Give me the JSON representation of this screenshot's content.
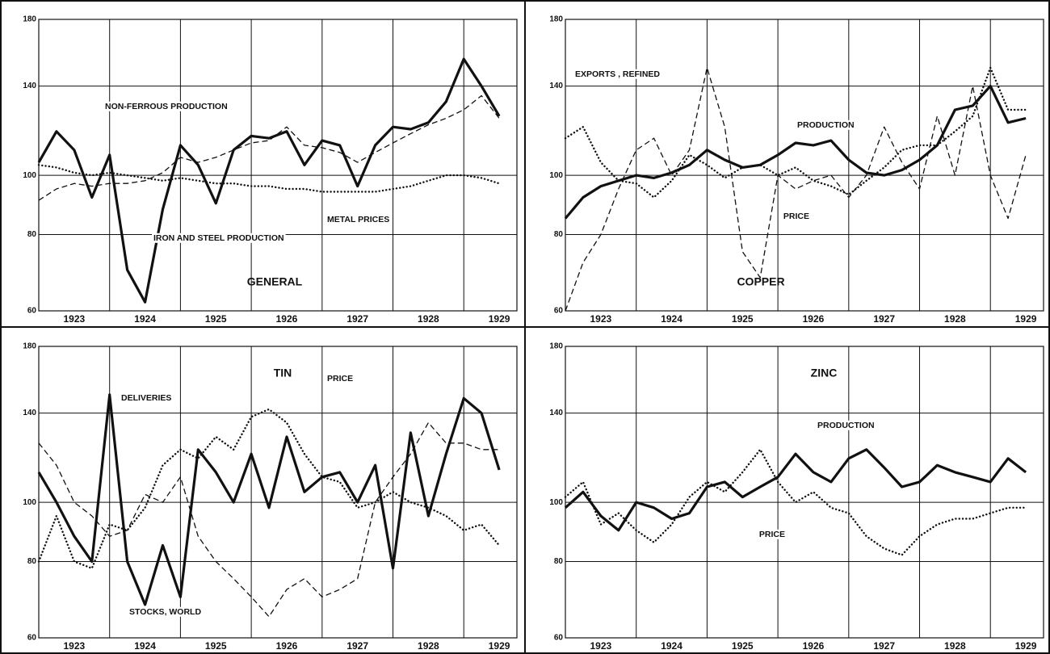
{
  "chart_data": [
    {
      "type": "line",
      "title": "GENERAL",
      "log": true,
      "xlim": [
        1923,
        1929.75
      ],
      "xticks": [
        1923,
        1924,
        1925,
        1926,
        1927,
        1928,
        1929
      ],
      "ylim": [
        60,
        180
      ],
      "yticks": [
        60,
        80,
        100,
        140,
        180
      ],
      "x": [
        1923.0,
        1923.25,
        1923.5,
        1923.75,
        1924.0,
        1924.25,
        1924.5,
        1924.75,
        1925.0,
        1925.25,
        1925.5,
        1925.75,
        1926.0,
        1926.25,
        1926.5,
        1926.75,
        1927.0,
        1927.25,
        1927.5,
        1927.75,
        1928.0,
        1928.25,
        1928.5,
        1928.75,
        1929.0,
        1929.25,
        1929.5
      ],
      "series": [
        {
          "name": "IRON AND STEEL PRODUCTION",
          "color": "#111111",
          "style": "thick",
          "values": [
            105,
            118,
            110,
            92,
            108,
            70,
            62,
            88,
            112,
            104,
            90,
            110,
            116,
            115,
            118,
            104,
            114,
            112,
            96,
            112,
            120,
            119,
            122,
            132,
            155,
            140,
            125
          ]
        },
        {
          "name": "NON-FERROUS PRODUCTION",
          "color": "#111111",
          "style": "dashed",
          "values": [
            91,
            95,
            97,
            96,
            97,
            97,
            98,
            101,
            107,
            105,
            107,
            110,
            113,
            114,
            120,
            112,
            111,
            109,
            105,
            109,
            113,
            117,
            121,
            124,
            128,
            135,
            124
          ]
        },
        {
          "name": "METAL PRICES",
          "color": "#111111",
          "style": "dotted",
          "values": [
            104,
            103,
            101,
            100,
            101,
            100,
            99,
            98,
            99,
            98,
            97,
            97,
            96,
            96,
            95,
            95,
            94,
            94,
            94,
            94,
            95,
            96,
            98,
            100,
            100,
            99,
            97
          ]
        }
      ]
    },
    {
      "type": "line",
      "title": "COPPER",
      "log": true,
      "xlim": [
        1923,
        1929.75
      ],
      "xticks": [
        1923,
        1924,
        1925,
        1926,
        1927,
        1928,
        1929
      ],
      "ylim": [
        60,
        180
      ],
      "yticks": [
        60,
        80,
        100,
        140,
        180
      ],
      "x": [
        1923.0,
        1923.25,
        1923.5,
        1923.75,
        1924.0,
        1924.25,
        1924.5,
        1924.75,
        1925.0,
        1925.25,
        1925.5,
        1925.75,
        1926.0,
        1926.25,
        1926.5,
        1926.75,
        1927.0,
        1927.25,
        1927.5,
        1927.75,
        1928.0,
        1928.25,
        1928.5,
        1928.75,
        1929.0,
        1929.25,
        1929.5
      ],
      "series": [
        {
          "name": "PRODUCTION",
          "color": "#111111",
          "style": "thick",
          "values": [
            85,
            92,
            96,
            98,
            100,
            99,
            101,
            104,
            110,
            106,
            103,
            104,
            108,
            113,
            112,
            114,
            106,
            101,
            100,
            102,
            106,
            112,
            128,
            130,
            140,
            122,
            124
          ]
        },
        {
          "name": "EXPORTS , REFINED",
          "color": "#111111",
          "style": "dashed",
          "values": [
            60,
            72,
            80,
            95,
            110,
            115,
            100,
            110,
            150,
            120,
            75,
            68,
            100,
            95,
            98,
            100,
            92,
            100,
            120,
            105,
            95,
            125,
            100,
            140,
            100,
            85,
            108
          ]
        },
        {
          "name": "PRICE",
          "color": "#111111",
          "style": "dotted",
          "values": [
            115,
            120,
            105,
            98,
            97,
            92,
            98,
            108,
            104,
            99,
            103,
            104,
            100,
            103,
            98,
            96,
            93,
            98,
            103,
            110,
            112,
            112,
            118,
            125,
            150,
            128,
            128
          ]
        }
      ]
    },
    {
      "type": "line",
      "title": "TIN",
      "log": true,
      "xlim": [
        1923,
        1929.75
      ],
      "xticks": [
        1923,
        1924,
        1925,
        1926,
        1927,
        1928,
        1929
      ],
      "ylim": [
        60,
        180
      ],
      "yticks": [
        60,
        80,
        100,
        140,
        180
      ],
      "x": [
        1923.0,
        1923.25,
        1923.5,
        1923.75,
        1924.0,
        1924.25,
        1924.5,
        1924.75,
        1925.0,
        1925.25,
        1925.5,
        1925.75,
        1926.0,
        1926.25,
        1926.5,
        1926.75,
        1927.0,
        1927.25,
        1927.5,
        1927.75,
        1928.0,
        1928.25,
        1928.5,
        1928.75,
        1929.0,
        1929.25,
        1929.5
      ],
      "series": [
        {
          "name": "DELIVERIES",
          "color": "#111111",
          "style": "thick",
          "values": [
            112,
            100,
            88,
            80,
            150,
            80,
            68,
            85,
            70,
            122,
            112,
            100,
            120,
            98,
            128,
            104,
            110,
            112,
            100,
            115,
            78,
            130,
            95,
            120,
            148,
            140,
            113
          ]
        },
        {
          "name": "STOCKS, WORLD",
          "color": "#111111",
          "style": "dashed",
          "values": [
            125,
            115,
            100,
            95,
            88,
            90,
            103,
            100,
            110,
            88,
            80,
            75,
            70,
            65,
            72,
            75,
            70,
            72,
            75,
            100,
            110,
            120,
            135,
            125,
            125,
            122,
            122
          ]
        },
        {
          "name": "PRICE",
          "color": "#111111",
          "style": "dotted",
          "values": [
            80,
            95,
            80,
            78,
            92,
            90,
            98,
            115,
            122,
            118,
            128,
            122,
            138,
            142,
            135,
            120,
            110,
            108,
            98,
            100,
            104,
            100,
            98,
            95,
            90,
            92,
            85
          ]
        }
      ]
    },
    {
      "type": "line",
      "title": "ZINC",
      "log": true,
      "xlim": [
        1923,
        1929.75
      ],
      "xticks": [
        1923,
        1924,
        1925,
        1926,
        1927,
        1928,
        1929
      ],
      "ylim": [
        60,
        180
      ],
      "yticks": [
        60,
        80,
        100,
        140,
        180
      ],
      "x": [
        1923.0,
        1923.25,
        1923.5,
        1923.75,
        1924.0,
        1924.25,
        1924.5,
        1924.75,
        1925.0,
        1925.25,
        1925.5,
        1925.75,
        1926.0,
        1926.25,
        1926.5,
        1926.75,
        1927.0,
        1927.25,
        1927.5,
        1927.75,
        1928.0,
        1928.25,
        1928.5,
        1928.75,
        1929.0,
        1929.25,
        1929.5
      ],
      "series": [
        {
          "name": "PRODUCTION",
          "color": "#111111",
          "style": "thick",
          "values": [
            98,
            104,
            95,
            90,
            100,
            98,
            94,
            96,
            106,
            108,
            102,
            106,
            110,
            120,
            112,
            108,
            118,
            122,
            114,
            106,
            108,
            115,
            112,
            110,
            108,
            118,
            112
          ]
        },
        {
          "name": "PRICE",
          "color": "#111111",
          "style": "dotted",
          "values": [
            102,
            108,
            92,
            96,
            90,
            86,
            92,
            102,
            108,
            104,
            112,
            122,
            108,
            100,
            104,
            98,
            96,
            88,
            84,
            82,
            88,
            92,
            94,
            94,
            96,
            98,
            98
          ]
        }
      ]
    }
  ]
}
